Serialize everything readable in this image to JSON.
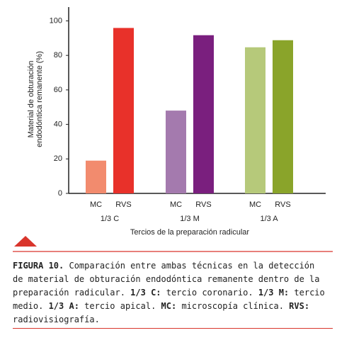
{
  "chart_data": {
    "type": "grouped-bar",
    "ylabel": [
      "Material de obturación",
      "endodóntica remanente (%)"
    ],
    "xlabel": "Tercios de la preparación radicular",
    "categories": [
      "1/3 C",
      "1/3 M",
      "1/3 A"
    ],
    "series": [
      {
        "name": "MC",
        "colors": [
          "#f28b6e",
          "#a47aae",
          "#b6c97a"
        ],
        "values": [
          19,
          48,
          84.7
        ]
      },
      {
        "name": "RVS",
        "colors": [
          "#e8312a",
          "#7a1f7e",
          "#8aa42a"
        ],
        "values": [
          95.9,
          91.7,
          88.8
        ]
      }
    ],
    "ylim": [
      0,
      108
    ],
    "yticks": [
      0,
      20,
      40,
      60,
      80,
      100
    ],
    "grid": false
  },
  "caption": [
    {
      "text": "FIGURA 10.",
      "bold": true
    },
    {
      "text": " Comparación entre ambas técnicas en la detección de material de obturación endodóntica remanente dentro de la preparación radicular. ",
      "bold": false
    },
    {
      "text": "1/3 C:",
      "bold": true
    },
    {
      "text": " tercio coronario. ",
      "bold": false
    },
    {
      "text": "1/3 M:",
      "bold": true
    },
    {
      "text": " tercio medio. ",
      "bold": false
    },
    {
      "text": "1/3 A:",
      "bold": true
    },
    {
      "text": " tercio apical. ",
      "bold": false
    },
    {
      "text": "MC:",
      "bold": true
    },
    {
      "text": " microscopía clínica. ",
      "bold": false
    },
    {
      "text": "RVS:",
      "bold": true
    },
    {
      "text": " radiovisiografía.",
      "bold": false
    }
  ]
}
